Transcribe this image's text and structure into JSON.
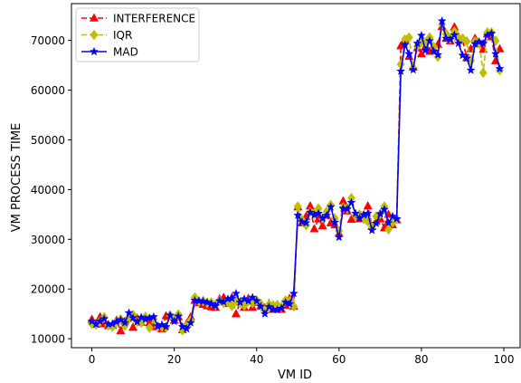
{
  "chart_data": {
    "type": "line",
    "title": "",
    "xlabel": "VM ID",
    "ylabel": "VM PROCESS TIME",
    "xlim": [
      -4.95,
      103.95
    ],
    "ylim": [
      8200,
      77400
    ],
    "x_ticks": [
      0,
      20,
      40,
      60,
      80,
      100
    ],
    "x_tick_labels": [
      "0",
      "20",
      "40",
      "60",
      "80",
      "100"
    ],
    "y_ticks": [
      10000,
      20000,
      30000,
      40000,
      50000,
      60000,
      70000
    ],
    "y_tick_labels": [
      "10000",
      "20000",
      "30000",
      "40000",
      "50000",
      "60000",
      "70000"
    ],
    "grid": false,
    "legend_position": "top-left",
    "x": [
      0,
      1,
      2,
      3,
      4,
      5,
      6,
      7,
      8,
      9,
      10,
      11,
      12,
      13,
      14,
      15,
      16,
      17,
      18,
      19,
      20,
      21,
      22,
      23,
      24,
      25,
      26,
      27,
      28,
      29,
      30,
      31,
      32,
      33,
      34,
      35,
      36,
      37,
      38,
      39,
      40,
      41,
      42,
      43,
      44,
      45,
      46,
      47,
      48,
      49,
      50,
      51,
      52,
      53,
      54,
      55,
      56,
      57,
      58,
      59,
      60,
      61,
      62,
      63,
      64,
      65,
      66,
      67,
      68,
      69,
      70,
      71,
      72,
      73,
      74,
      75,
      76,
      77,
      78,
      79,
      80,
      81,
      82,
      83,
      84,
      85,
      86,
      87,
      88,
      89,
      90,
      91,
      92,
      93,
      94,
      95,
      96,
      97,
      98,
      99
    ],
    "series": [
      {
        "name": "INTERFERENCE",
        "color": "#ff0000",
        "marker": "triangle",
        "dash": true,
        "values": [
          13900,
          12900,
          14400,
          13000,
          12600,
          12700,
          13700,
          11600,
          13500,
          14300,
          12300,
          14100,
          13300,
          14500,
          13200,
          12400,
          12600,
          12000,
          14600,
          14500,
          13700,
          14400,
          11800,
          13000,
          14400,
          17700,
          17200,
          16900,
          16600,
          16400,
          16300,
          18000,
          18300,
          17100,
          18300,
          15000,
          17400,
          16300,
          18100,
          16300,
          17300,
          16600,
          16200,
          17100,
          15900,
          16700,
          15900,
          16700,
          18100,
          16500,
          36500,
          33300,
          34600,
          36700,
          32100,
          34100,
          32700,
          34800,
          33300,
          32900,
          31200,
          37700,
          35700,
          34000,
          34600,
          34100,
          34900,
          36700,
          32600,
          33600,
          34100,
          32300,
          35000,
          32900,
          33900,
          68900,
          70100,
          66800,
          64600,
          68500,
          67300,
          68800,
          67800,
          68300,
          69200,
          72800,
          70400,
          69900,
          72700,
          70700,
          70000,
          66500,
          68300,
          70400,
          69300,
          68200,
          71300,
          70700,
          65900,
          68300
        ]
      },
      {
        "name": "IQR",
        "color": "#bfbf00",
        "marker": "diamond",
        "dash": true,
        "values": [
          13000,
          12800,
          13500,
          14300,
          12700,
          12400,
          13300,
          13900,
          12600,
          14000,
          14800,
          13400,
          13200,
          14400,
          12200,
          14000,
          12500,
          12400,
          12300,
          14700,
          13900,
          14900,
          11700,
          12600,
          13700,
          18300,
          17500,
          17600,
          17200,
          17300,
          16800,
          17600,
          17200,
          17400,
          16600,
          17700,
          17200,
          16700,
          17500,
          17200,
          17700,
          17000,
          15800,
          16900,
          16700,
          16800,
          16400,
          17700,
          17600,
          16500,
          36600,
          33900,
          32800,
          35500,
          35100,
          36200,
          34200,
          35600,
          36900,
          34200,
          31700,
          36400,
          36200,
          38300,
          34700,
          35000,
          34100,
          33600,
          32400,
          34600,
          35100,
          36600,
          32000,
          33400,
          34100,
          65200,
          70200,
          70600,
          64500,
          68800,
          69700,
          69600,
          70600,
          68700,
          66700,
          73200,
          71300,
          70400,
          71800,
          70400,
          70400,
          69800,
          65900,
          69800,
          69500,
          63500,
          71600,
          71600,
          69900,
          64000
        ]
      },
      {
        "name": "MAD",
        "color": "#0000ff",
        "marker": "star",
        "dash": false,
        "values": [
          13500,
          12900,
          13500,
          14000,
          12900,
          13000,
          13400,
          13800,
          13200,
          15200,
          14200,
          13400,
          14300,
          13900,
          14200,
          14400,
          12500,
          12800,
          12400,
          14700,
          13500,
          14500,
          12400,
          12000,
          13200,
          17700,
          17600,
          17500,
          17300,
          17000,
          16600,
          17600,
          17400,
          18000,
          18100,
          19100,
          17300,
          18000,
          17600,
          18300,
          17600,
          16500,
          15000,
          16400,
          15900,
          15800,
          16100,
          17300,
          17000,
          19100,
          34800,
          33500,
          33300,
          35400,
          34900,
          35200,
          34200,
          34800,
          36500,
          33400,
          30400,
          36200,
          36100,
          37400,
          35200,
          34200,
          34900,
          35200,
          31800,
          33200,
          35100,
          36000,
          33300,
          34600,
          34100,
          63800,
          69100,
          67300,
          64100,
          69400,
          71000,
          68000,
          69900,
          67800,
          67100,
          73900,
          70400,
          70200,
          71100,
          69400,
          67000,
          66400,
          64000,
          69300,
          69700,
          69400,
          71000,
          71400,
          67300,
          64300
        ]
      }
    ]
  }
}
